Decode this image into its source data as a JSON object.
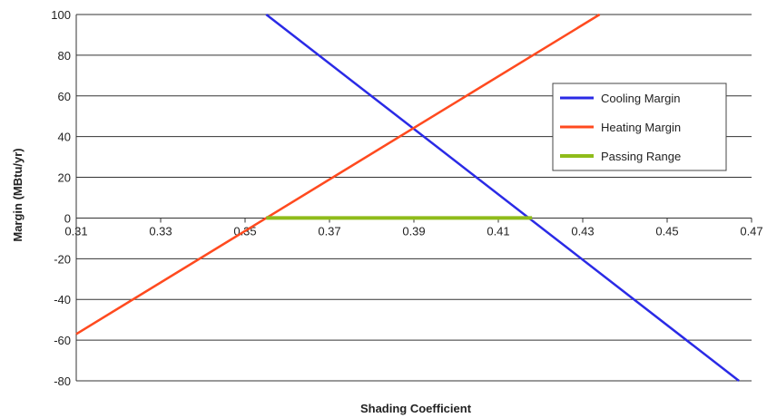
{
  "chart_data": {
    "type": "line",
    "title": "",
    "xlabel": "Shading Coefficient",
    "ylabel": "Margin (MBtu/yr)",
    "xlim": [
      0.31,
      0.47
    ],
    "ylim": [
      -80,
      100
    ],
    "x_ticks": [
      "0.31",
      "0.33",
      "0.35",
      "0.37",
      "0.39",
      "0.41",
      "0.43",
      "0.45",
      "0.47"
    ],
    "y_ticks": [
      "100",
      "80",
      "60",
      "40",
      "20",
      "0",
      "-20",
      "-40",
      "-60",
      "-80"
    ],
    "grid": "horizontal",
    "legend_position": "right",
    "series": [
      {
        "name": "Cooling Margin",
        "color": "#2a2ae6",
        "x": [
          0.355,
          0.467
        ],
        "y": [
          100,
          -80
        ]
      },
      {
        "name": "Heating Margin",
        "color": "#ff4a1f",
        "x": [
          0.31,
          0.434
        ],
        "y": [
          -57,
          100
        ]
      },
      {
        "name": "Passing Range",
        "color": "#8fbc1a",
        "x": [
          0.355,
          0.418
        ],
        "y": [
          0,
          0
        ]
      }
    ]
  }
}
